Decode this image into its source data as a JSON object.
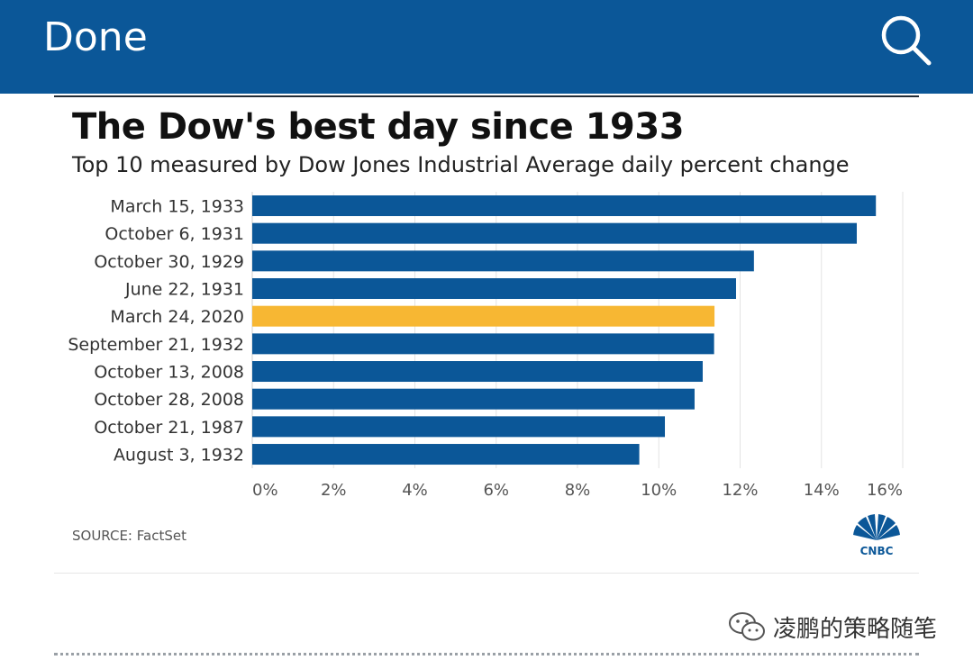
{
  "header": {
    "done_label": "Done",
    "search_icon": "search-icon",
    "background": "#0b5798"
  },
  "chart_data": {
    "type": "bar",
    "orientation": "horizontal",
    "title": "The Dow's best day since 1933",
    "subtitle": "Top 10 measured by Dow Jones Industrial Average daily percent change",
    "categories": [
      "March 15, 1933",
      "October 6, 1931",
      "October 30, 1929",
      "June 22, 1931",
      "March 24, 2020",
      "September 21, 1932",
      "October 13, 2008",
      "October 28, 2008",
      "October 21, 1987",
      "August 3, 1932"
    ],
    "values": [
      15.34,
      14.87,
      12.34,
      11.9,
      11.37,
      11.36,
      11.08,
      10.88,
      10.15,
      9.52
    ],
    "highlight": "March 24, 2020",
    "bar_color": "#0b5798",
    "highlight_color": "#f7b733",
    "xlim": [
      0,
      16
    ],
    "xticks": [
      "0%",
      "2%",
      "4%",
      "6%",
      "8%",
      "10%",
      "12%",
      "14%",
      "16%"
    ],
    "grid": true,
    "xlabel": "",
    "ylabel": ""
  },
  "footer": {
    "source": "SOURCE: FactSet",
    "logo": "cnbc-peacock-logo"
  },
  "watermark": {
    "text": "凌鹏的策略随笔",
    "icon": "wechat-icon"
  }
}
